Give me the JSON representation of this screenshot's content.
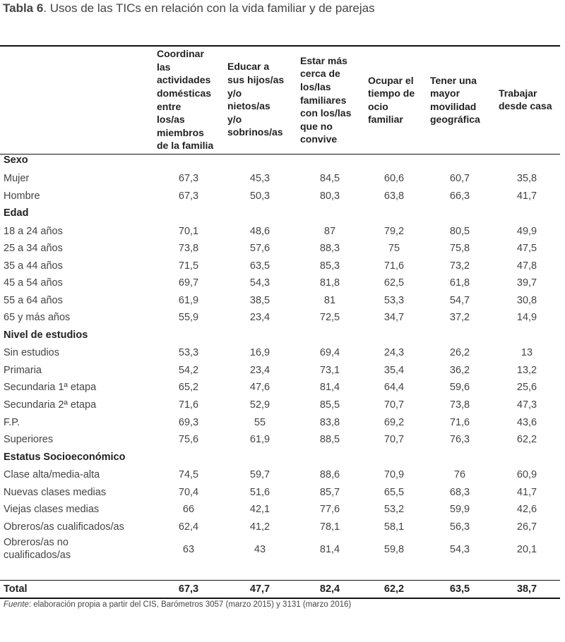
{
  "caption": {
    "label": "Tabla 6",
    "text": ". Usos de las TICs en relación con la vida familiar y de parejas"
  },
  "columns": [
    "Coordinar\nlas\nactividades\ndomésticas\nentre\nlos/as\nmiembros\nde la familia",
    "Educar a\nsus hijos/as\ny/o\nnietos/as\ny/o\nsobrinos/as",
    "Estar más\ncerca de\nlos/las\nfamiliares\ncon los/las\nque no\nconvive",
    "Ocupar el\ntiempo de\nocio\nfamiliar",
    "Tener una\nmayor\nmovilidad\ngeográfica",
    "Trabajar\ndesde casa"
  ],
  "sections": [
    {
      "title": "Sexo",
      "rows": [
        {
          "label": "Mujer",
          "values": [
            "67,3",
            "45,3",
            "84,5",
            "60,6",
            "60,7",
            "35,8"
          ]
        },
        {
          "label": "Hombre",
          "values": [
            "67,3",
            "50,3",
            "80,3",
            "63,8",
            "66,3",
            "41,7"
          ]
        }
      ]
    },
    {
      "title": "Edad",
      "rows": [
        {
          "label": "18 a 24 años",
          "values": [
            "70,1",
            "48,6",
            "87",
            "79,2",
            "80,5",
            "49,9"
          ]
        },
        {
          "label": "25 a 34 años",
          "values": [
            "73,8",
            "57,6",
            "88,3",
            "75",
            "75,8",
            "47,5"
          ]
        },
        {
          "label": "35 a 44 años",
          "values": [
            "71,5",
            "63,5",
            "85,3",
            "71,6",
            "73,2",
            "47,8"
          ]
        },
        {
          "label": "45 a 54 años",
          "values": [
            "69,7",
            "54,3",
            "81,8",
            "62,5",
            "61,8",
            "39,7"
          ]
        },
        {
          "label": "55 a 64 años",
          "values": [
            "61,9",
            "38,5",
            "81",
            "53,3",
            "54,7",
            "30,8"
          ]
        },
        {
          "label": "65 y más años",
          "values": [
            "55,9",
            "23,4",
            "72,5",
            "34,7",
            "37,2",
            "14,9"
          ]
        }
      ]
    },
    {
      "title": "Nivel de estudios",
      "rows": [
        {
          "label": "Sin estudios",
          "values": [
            "53,3",
            "16,9",
            "69,4",
            "24,3",
            "26,2",
            "13"
          ]
        },
        {
          "label": "Primaria",
          "values": [
            "54,2",
            "23,4",
            "73,1",
            "35,4",
            "36,2",
            "13,2"
          ]
        },
        {
          "label": "Secundaria 1ª etapa",
          "values": [
            "65,2",
            "47,6",
            "81,4",
            "64,4",
            "59,6",
            "25,6"
          ]
        },
        {
          "label": "Secundaria 2ª etapa",
          "values": [
            "71,6",
            "52,9",
            "85,5",
            "70,7",
            "73,8",
            "47,3"
          ]
        },
        {
          "label": "F.P.",
          "values": [
            "69,3",
            "55",
            "83,8",
            "69,2",
            "71,6",
            "43,6"
          ]
        },
        {
          "label": "Superiores",
          "values": [
            "75,6",
            "61,9",
            "88,5",
            "70,7",
            "76,3",
            "62,2"
          ]
        }
      ]
    },
    {
      "title": "Estatus Socioeconómico",
      "rows": [
        {
          "label": "Clase alta/media-alta",
          "values": [
            "74,5",
            "59,7",
            "88,6",
            "70,9",
            "76",
            "60,9"
          ]
        },
        {
          "label": "Nuevas clases medias",
          "values": [
            "70,4",
            "51,6",
            "85,7",
            "65,5",
            "68,3",
            "41,7"
          ]
        },
        {
          "label": "Viejas clases medias",
          "values": [
            "66",
            "42,1",
            "77,6",
            "53,2",
            "59,9",
            "42,6"
          ]
        },
        {
          "label": "Obreros/as cualificados/as",
          "values": [
            "62,4",
            "41,2",
            "78,1",
            "58,1",
            "56,3",
            "26,7"
          ]
        },
        {
          "label": "Obreros/as no\ncualificados/as",
          "values": [
            "63",
            "43",
            "81,4",
            "59,8",
            "54,3",
            "20,1"
          ]
        }
      ]
    }
  ],
  "total": {
    "label": "Total",
    "values": [
      "67,3",
      "47,7",
      "82,4",
      "62,2",
      "63,5",
      "38,7"
    ]
  },
  "source": {
    "label": "Fuente",
    "text": ": elaboración propia a partir del CIS, Barómetros 3057 (marzo 2015) y 3131 (marzo 2016)"
  }
}
